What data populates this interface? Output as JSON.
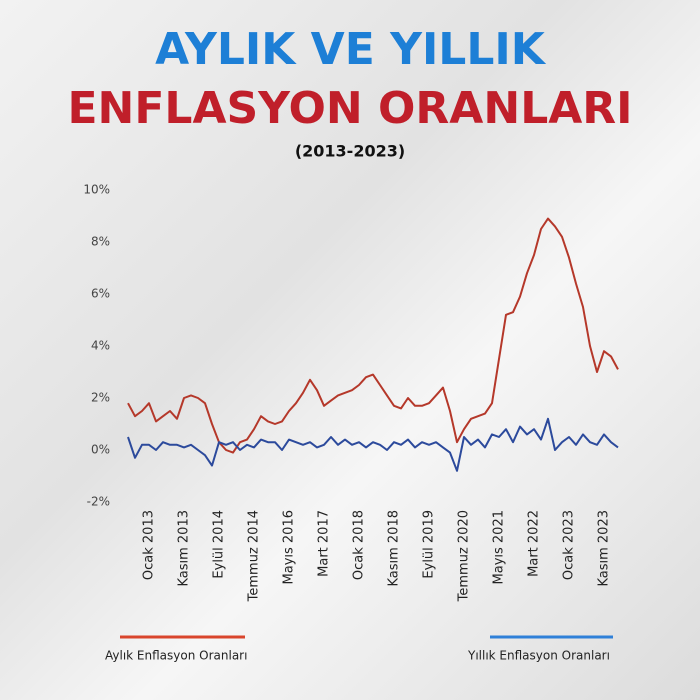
{
  "chart_data": {
    "type": "line",
    "title": "AYLIK VE YILLIK",
    "title_line2": "ENFLASYON ORANLARI",
    "subtitle": "(2013-2023)",
    "categories": [
      null,
      null,
      null,
      "Ocak 2013",
      null,
      null,
      null,
      null,
      "Kasım 2013",
      null,
      null,
      null,
      null,
      "Eylül 2014",
      null,
      null,
      null,
      null,
      "Temmuz 2014",
      null,
      null,
      null,
      null,
      "Mayıs 2016",
      null,
      null,
      null,
      null,
      "Mart 2017",
      null,
      null,
      null,
      null,
      "Ocak 2018",
      null,
      null,
      null,
      null,
      "Kasım 2018",
      null,
      null,
      null,
      null,
      "Eylül 2019",
      null,
      null,
      null,
      null,
      "Temmuz 2020",
      null,
      null,
      null,
      null,
      "Mayıs 2021",
      null,
      null,
      null,
      null,
      "Mart 2022",
      null,
      null,
      null,
      null,
      "Ocak 2023",
      null,
      null,
      null,
      null,
      "Kasım 2023",
      null,
      null
    ],
    "series": [
      {
        "name": "Aylık Enflasyon Oranları",
        "color": "#b5382a",
        "legend_color": "#d9452c",
        "values": [
          1.8,
          1.3,
          1.5,
          1.8,
          1.1,
          1.3,
          1.5,
          1.2,
          2.0,
          2.1,
          2.0,
          1.8,
          1.0,
          0.3,
          0.0,
          -0.1,
          0.3,
          0.4,
          0.8,
          1.3,
          1.1,
          1.0,
          1.1,
          1.5,
          1.8,
          2.2,
          2.7,
          2.3,
          1.7,
          1.9,
          2.1,
          2.2,
          2.3,
          2.5,
          2.8,
          2.9,
          2.5,
          2.1,
          1.7,
          1.6,
          2.0,
          1.7,
          1.7,
          1.8,
          2.1,
          2.4,
          1.5,
          0.3,
          0.8,
          1.2,
          1.3,
          1.4,
          1.8,
          3.5,
          5.2,
          5.3,
          5.9,
          6.8,
          7.5,
          8.5,
          8.9,
          8.6,
          8.2,
          7.4,
          6.4,
          5.5,
          4.0,
          3.0,
          3.8,
          3.6,
          3.1
        ]
      },
      {
        "name": "Yıllık Enflasyon Oranları",
        "color": "#2c4a9c",
        "legend_color": "#2f80d8",
        "values": [
          0.5,
          -0.3,
          0.2,
          0.2,
          0.0,
          0.3,
          0.2,
          0.2,
          0.1,
          0.2,
          0.0,
          -0.2,
          -0.6,
          0.3,
          0.2,
          0.3,
          0.0,
          0.2,
          0.1,
          0.4,
          0.3,
          0.3,
          0.0,
          0.4,
          0.3,
          0.2,
          0.3,
          0.1,
          0.2,
          0.5,
          0.2,
          0.4,
          0.2,
          0.3,
          0.1,
          0.3,
          0.2,
          0.0,
          0.3,
          0.2,
          0.4,
          0.1,
          0.3,
          0.2,
          0.3,
          0.1,
          -0.1,
          -0.8,
          0.5,
          0.2,
          0.4,
          0.1,
          0.6,
          0.5,
          0.8,
          0.3,
          0.9,
          0.6,
          0.8,
          0.4,
          1.2,
          0.0,
          0.3,
          0.5,
          0.2,
          0.6,
          0.3,
          0.2,
          0.6,
          0.3,
          0.1
        ]
      }
    ],
    "ylim": [
      -2,
      10
    ],
    "yticks": [
      {
        "value": -2,
        "label": "-2%"
      },
      {
        "value": 0,
        "label": "0%"
      },
      {
        "value": 2,
        "label": "2%"
      },
      {
        "value": 4,
        "label": "4%"
      },
      {
        "value": 6,
        "label": "6%"
      },
      {
        "value": 8,
        "label": "8%"
      },
      {
        "value": 10,
        "label": "10%"
      }
    ],
    "grid": false
  }
}
